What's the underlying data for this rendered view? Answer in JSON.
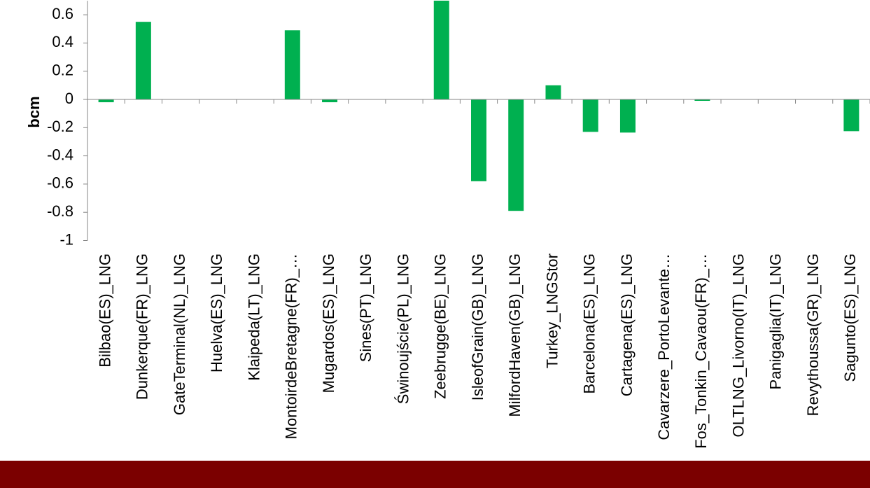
{
  "chart_data": {
    "type": "bar",
    "title": "",
    "xlabel": "",
    "ylabel": "bcm",
    "ylim": [
      -1,
      0.6
    ],
    "yticks": [
      0.6,
      0.4,
      0.2,
      0,
      -0.2,
      -0.4,
      -0.6,
      -0.8,
      -1
    ],
    "ytick_labels": [
      "0.6",
      "0.4",
      "0.2",
      "0",
      "-0.2",
      "-0.4",
      "-0.6",
      "-0.8",
      "-1"
    ],
    "grid": false,
    "categories": [
      "Bilbao(ES)_LNG",
      "Dunkerque(FR)_LNG",
      "GateTerminal(NL)_LNG",
      "Huelva(ES)_LNG",
      "Klaipeda(LT)_LNG",
      "MontoirdeBretagne(FR)_…",
      "Mugardos(ES)_LNG",
      "Sines(PT)_LNG",
      "Świnoujście(PL)_LNG",
      "Zeebrugge(BE)_LNG",
      "IsleofGrain(GB)_LNG",
      "MilfordHaven(GB)_LNG",
      "Turkey_LNGStor",
      "Barcelona(ES)_LNG",
      "Cartagena(ES)_LNG",
      "Cavarzere_PortoLevante…",
      "Fos_Tonkin_Cavaou(FR)_…",
      "OLTLNG_Livorno(IT)_LNG",
      "Panigaglia(IT)_LNG",
      "Revythoussa(GR)_LNG",
      "Sagunto(ES)_LNG"
    ],
    "series": [
      {
        "values": [
          -0.02,
          0.55,
          0,
          0,
          0,
          0.49,
          -0.02,
          0,
          0,
          0.7,
          -0.58,
          -0.79,
          0.1,
          -0.23,
          -0.235,
          0,
          -0.01,
          0,
          0,
          0,
          -0.225
        ]
      }
    ],
    "colors": {
      "bar": "#00B050",
      "axis": "#868686",
      "footer": "#7B0000"
    }
  }
}
